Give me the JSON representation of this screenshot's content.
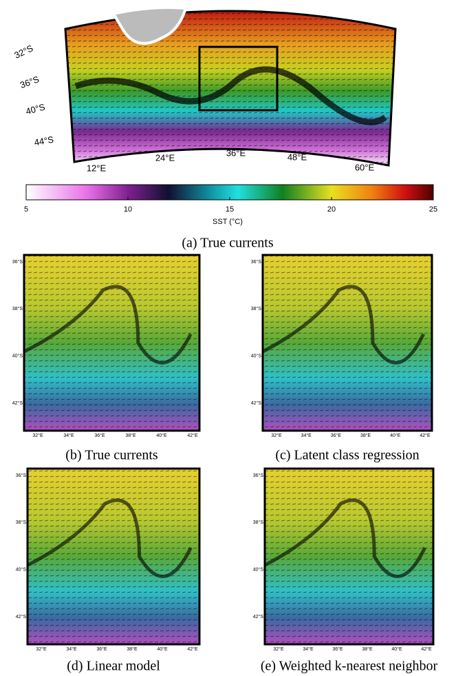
{
  "panel_a": {
    "lat_labels": [
      "32°S",
      "36°S",
      "40°S",
      "44°S"
    ],
    "lon_labels": [
      "12°E",
      "24°E",
      "36°E",
      "48°E",
      "60°E"
    ],
    "caption": "(a) True currents"
  },
  "colorbar": {
    "label": "SST (°C)",
    "lim": [
      5,
      25
    ],
    "ticks": [
      5,
      10,
      15,
      20,
      25
    ]
  },
  "panels": [
    {
      "caption": "(b) True currents",
      "lat_labels": [
        "36°S",
        "38°S",
        "40°S",
        "42°S"
      ],
      "lon_labels": [
        "32°E",
        "34°E",
        "36°E",
        "38°E",
        "40°E",
        "42°E"
      ]
    },
    {
      "caption": "(c) Latent class regression",
      "lat_labels": [
        "36°S",
        "38°S",
        "40°S",
        "42°S"
      ],
      "lon_labels": [
        "32°E",
        "34°E",
        "36°E",
        "38°E",
        "40°E",
        "42°E"
      ]
    },
    {
      "caption": "(d) Linear model",
      "lat_labels": [
        "36°S",
        "38°S",
        "40°S",
        "42°S"
      ],
      "lon_labels": [
        "32°E",
        "34°E",
        "36°E",
        "38°E",
        "40°E",
        "42°E"
      ]
    },
    {
      "caption": "(e) Weighted k-nearest neighbor",
      "lat_labels": [
        "36°S",
        "38°S",
        "40°S",
        "42°S"
      ],
      "lon_labels": [
        "32°E",
        "34°E",
        "36°E",
        "38°E",
        "40°E",
        "42°E"
      ]
    }
  ]
}
